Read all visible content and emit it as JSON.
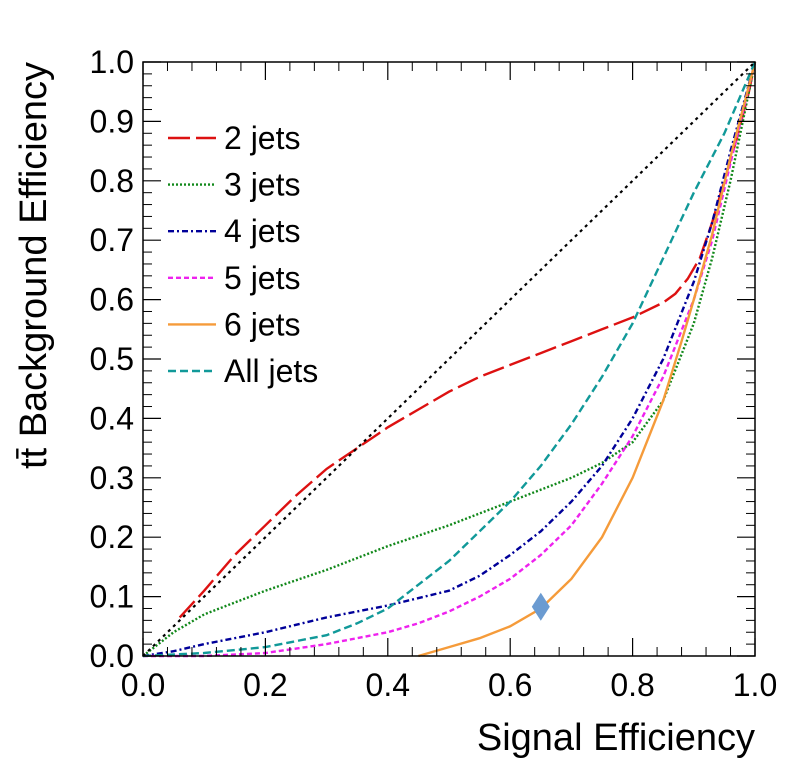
{
  "chart_data": {
    "type": "line",
    "xlabel": "Signal Efficiency",
    "ylabel": "tt̄ Background Efficiency",
    "xlim": [
      0,
      1
    ],
    "ylim": [
      0,
      1
    ],
    "x_ticks": [
      "0.0",
      "0.2",
      "0.4",
      "0.6",
      "0.8",
      "1.0"
    ],
    "y_ticks": [
      "0.0",
      "0.1",
      "0.2",
      "0.3",
      "0.4",
      "0.5",
      "0.6",
      "0.7",
      "0.8",
      "0.9",
      "1.0"
    ],
    "grid": false,
    "legend_position": "top-left",
    "series": [
      {
        "name": "2 jets",
        "color": "#dd1111",
        "dash": "long-dash",
        "x": [
          0.06,
          0.1,
          0.15,
          0.2,
          0.25,
          0.3,
          0.35,
          0.4,
          0.45,
          0.5,
          0.55,
          0.6,
          0.65,
          0.7,
          0.75,
          0.8,
          0.85,
          0.87,
          0.89,
          0.91,
          0.93,
          0.95,
          0.97,
          0.99,
          1.0
        ],
        "y": [
          0.065,
          0.11,
          0.17,
          0.22,
          0.27,
          0.315,
          0.35,
          0.385,
          0.415,
          0.445,
          0.47,
          0.49,
          0.51,
          0.53,
          0.55,
          0.57,
          0.595,
          0.61,
          0.635,
          0.67,
          0.73,
          0.8,
          0.87,
          0.95,
          1.0
        ]
      },
      {
        "name": "3 jets",
        "color": "#11881a",
        "dash": "dotted",
        "x": [
          0.0,
          0.05,
          0.1,
          0.15,
          0.2,
          0.3,
          0.4,
          0.5,
          0.6,
          0.7,
          0.75,
          0.8,
          0.85,
          0.9,
          0.93,
          0.96,
          0.98,
          1.0
        ],
        "y": [
          0.0,
          0.04,
          0.07,
          0.09,
          0.11,
          0.145,
          0.185,
          0.22,
          0.26,
          0.3,
          0.325,
          0.36,
          0.43,
          0.56,
          0.67,
          0.8,
          0.9,
          1.0
        ]
      },
      {
        "name": "4 jets",
        "color": "#000099",
        "dash": "dash-dot",
        "x": [
          0.0,
          0.05,
          0.1,
          0.2,
          0.3,
          0.4,
          0.5,
          0.55,
          0.6,
          0.65,
          0.7,
          0.75,
          0.8,
          0.85,
          0.9,
          0.93,
          0.96,
          1.0
        ],
        "y": [
          0.0,
          0.008,
          0.02,
          0.04,
          0.065,
          0.085,
          0.11,
          0.135,
          0.17,
          0.21,
          0.26,
          0.32,
          0.4,
          0.5,
          0.63,
          0.73,
          0.85,
          1.0
        ]
      },
      {
        "name": "5 jets",
        "color": "#ee22ee",
        "dash": "short-dash",
        "x": [
          0.0,
          0.1,
          0.2,
          0.3,
          0.4,
          0.45,
          0.5,
          0.55,
          0.6,
          0.65,
          0.7,
          0.75,
          0.8,
          0.85,
          0.9,
          0.93,
          0.96,
          1.0
        ],
        "y": [
          0.0,
          0.0,
          0.005,
          0.02,
          0.04,
          0.055,
          0.075,
          0.1,
          0.13,
          0.17,
          0.22,
          0.29,
          0.37,
          0.47,
          0.6,
          0.7,
          0.83,
          1.0
        ]
      },
      {
        "name": "6 jets",
        "color": "#f59b3a",
        "dash": "solid",
        "x": [
          0.45,
          0.5,
          0.55,
          0.6,
          0.65,
          0.7,
          0.75,
          0.8,
          0.85,
          0.88,
          0.9,
          0.93,
          0.96,
          0.98,
          1.0
        ],
        "y": [
          0.0,
          0.015,
          0.03,
          0.05,
          0.08,
          0.13,
          0.2,
          0.3,
          0.43,
          0.53,
          0.6,
          0.71,
          0.84,
          0.92,
          1.0
        ]
      },
      {
        "name": "All jets",
        "color": "#119999",
        "dash": "dashed",
        "x": [
          0.0,
          0.1,
          0.2,
          0.3,
          0.35,
          0.4,
          0.45,
          0.5,
          0.55,
          0.6,
          0.65,
          0.7,
          0.75,
          0.8,
          0.85,
          0.9,
          0.95,
          1.0
        ],
        "y": [
          0.0,
          0.005,
          0.015,
          0.035,
          0.055,
          0.08,
          0.12,
          0.16,
          0.21,
          0.26,
          0.32,
          0.39,
          0.47,
          0.56,
          0.67,
          0.78,
          0.88,
          1.0
        ]
      },
      {
        "color": "#000000",
        "dash": "dotted-diagonal",
        "x": [
          0,
          1
        ],
        "y": [
          0,
          1
        ]
      }
    ],
    "marker": {
      "x": 0.65,
      "y": 0.083,
      "shape": "diamond",
      "color": "#6b9bd1"
    }
  }
}
